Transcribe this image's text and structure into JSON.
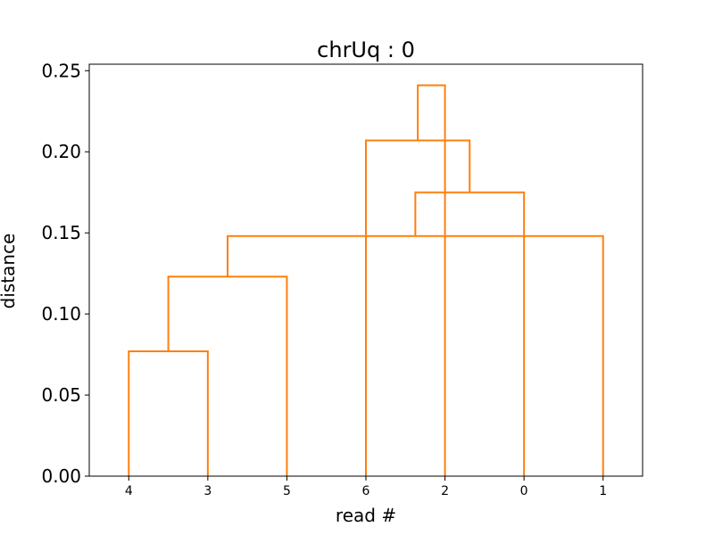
{
  "chart_data": {
    "type": "dendrogram",
    "title": "chrUq : 0",
    "xlabel": "read #",
    "ylabel": "distance",
    "leaves": [
      "4",
      "3",
      "5",
      "6",
      "2",
      "0",
      "1"
    ],
    "ylim": [
      0,
      0.254
    ],
    "yticks": [
      0.0,
      0.05,
      0.1,
      0.15,
      0.2,
      0.25
    ],
    "ytick_labels": [
      "0.00",
      "0.05",
      "0.10",
      "0.15",
      "0.20",
      "0.25"
    ],
    "link_color": "#ff7f0e",
    "merges": [
      {
        "left": "leaf:0",
        "right": "leaf:1",
        "height": 0.077
      },
      {
        "left": "leaf:2",
        "right": "merge:0",
        "height": 0.123
      },
      {
        "left": "leaf:6",
        "right": "merge:1",
        "height": 0.148
      },
      {
        "left": "leaf:5",
        "right": "merge:2",
        "height": 0.175
      },
      {
        "left": "leaf:3",
        "right": "merge:3",
        "height": 0.207
      },
      {
        "left": "leaf:4",
        "right": "merge:4",
        "height": 0.241
      }
    ]
  }
}
